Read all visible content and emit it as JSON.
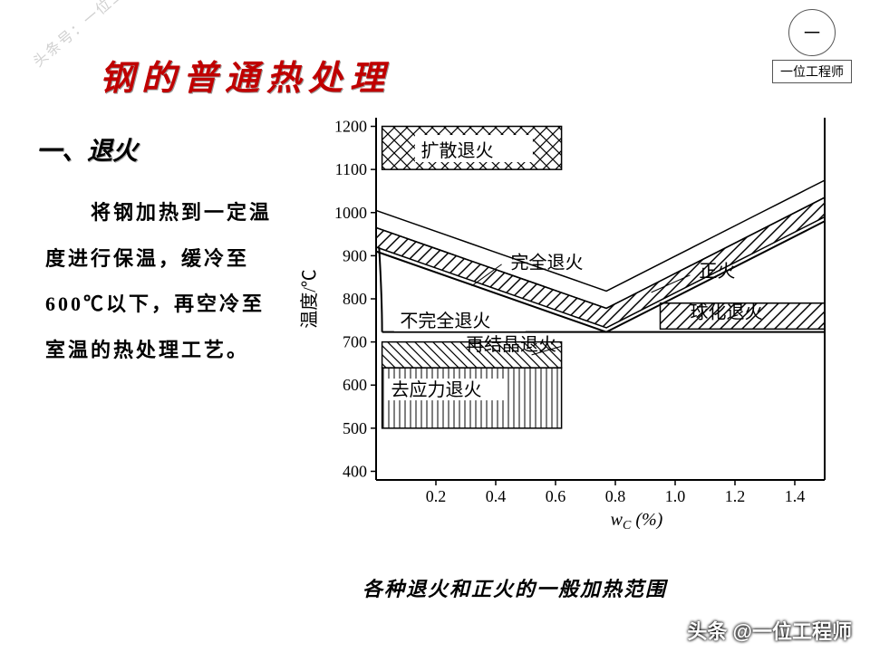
{
  "watermark_diag": "头条号：一位工程师",
  "logo": {
    "inner": "一",
    "label": "一位工程师"
  },
  "title": "钢的普通热处理",
  "section": "一、退火",
  "body": "　　将钢加热到一定温度进行保温，缓冷至600℃以下，再空冷至室温的热处理工艺。",
  "caption": "各种退火和正火的一般加热范围",
  "footer": "头条 @一位工程师",
  "chart": {
    "type": "phase-diagram",
    "y_label": "温度/℃",
    "x_label": "w_C (%)",
    "y_ticks": [
      400,
      500,
      600,
      700,
      800,
      900,
      1000,
      1100,
      1200
    ],
    "x_ticks": [
      0.2,
      0.4,
      0.6,
      0.8,
      1.0,
      1.2,
      1.4
    ],
    "y_range": [
      380,
      1220
    ],
    "x_range": [
      0,
      1.5
    ],
    "axis_color": "#000000",
    "tick_fontsize": 18,
    "label_fontsize": 20,
    "regions": {
      "diffusion": {
        "label": "扩散退火",
        "y": [
          1100,
          1200
        ],
        "x": [
          0.02,
          0.62
        ],
        "pattern": "crosshatch"
      },
      "full": {
        "label": "完全退火",
        "band_above_A3": true,
        "pattern": "diag"
      },
      "normalize": {
        "label": "正火",
        "band_top": true
      },
      "spheroidize": {
        "label": "球化退火",
        "y": [
          730,
          790
        ],
        "x": [
          0.95,
          1.5
        ],
        "pattern": "diag"
      },
      "incomplete": {
        "label": "不完全退火",
        "y": [
          700,
          780
        ],
        "x": [
          0.02,
          0.77
        ]
      },
      "recrystal": {
        "label": "再结晶退火",
        "y": [
          640,
          700
        ],
        "x": [
          0.02,
          0.62
        ],
        "pattern": "diag2"
      },
      "stress": {
        "label": "去应力退火",
        "y": [
          500,
          640
        ],
        "x": [
          0.02,
          0.62
        ],
        "pattern": "vlines"
      }
    },
    "lines": {
      "A1": 723,
      "A3": [
        [
          0,
          910
        ],
        [
          0.77,
          723
        ]
      ],
      "Acm": [
        [
          0.77,
          723
        ],
        [
          1.5,
          980
        ]
      ]
    }
  }
}
